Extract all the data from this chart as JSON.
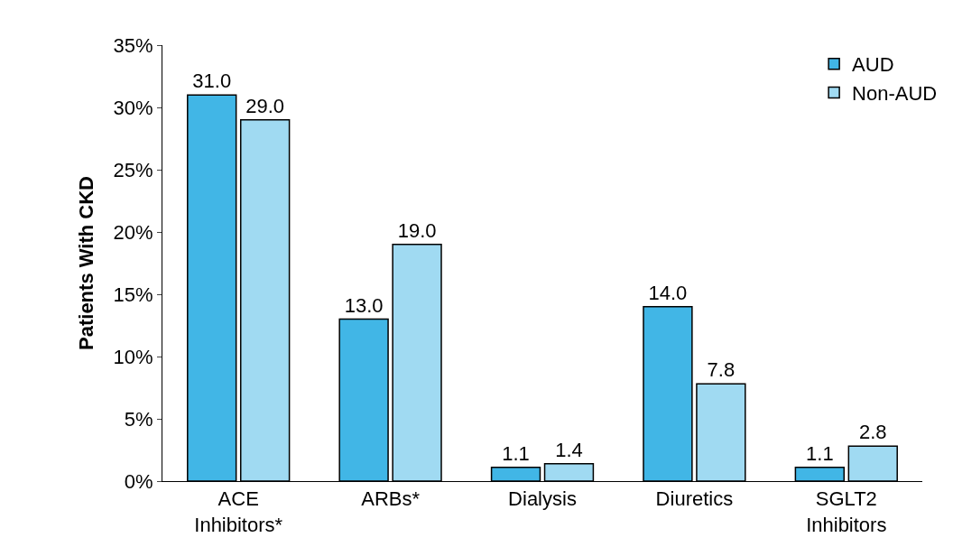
{
  "chart_data": {
    "type": "bar",
    "ylabel": "Patients With CKD",
    "categories": [
      "ACE Inhibitors*",
      "ARBs*",
      "Dialysis",
      "Diuretics",
      "SGLT2 Inhibitors"
    ],
    "series": [
      {
        "name": "AUD",
        "color": "#41b6e6",
        "values": [
          31.0,
          13.0,
          1.1,
          14.0,
          1.1
        ],
        "value_labels": [
          "31.0",
          "13.0",
          "1.1",
          "14.0",
          "1.1"
        ]
      },
      {
        "name": "Non-AUD",
        "color": "#a0daf2",
        "values": [
          29.0,
          19.0,
          1.4,
          7.8,
          2.8
        ],
        "value_labels": [
          "29.0",
          "19.0",
          "1.4",
          "7.8",
          "2.8"
        ]
      }
    ],
    "ylim": [
      0,
      35
    ],
    "yticks": [
      {
        "value": 0,
        "label": "0%"
      },
      {
        "value": 5,
        "label": "5%"
      },
      {
        "value": 10,
        "label": "10%"
      },
      {
        "value": 15,
        "label": "15%"
      },
      {
        "value": 20,
        "label": "20%"
      },
      {
        "value": 25,
        "label": "25%"
      },
      {
        "value": 30,
        "label": "30%"
      },
      {
        "value": 35,
        "label": "35%"
      }
    ],
    "legend": "top right"
  }
}
